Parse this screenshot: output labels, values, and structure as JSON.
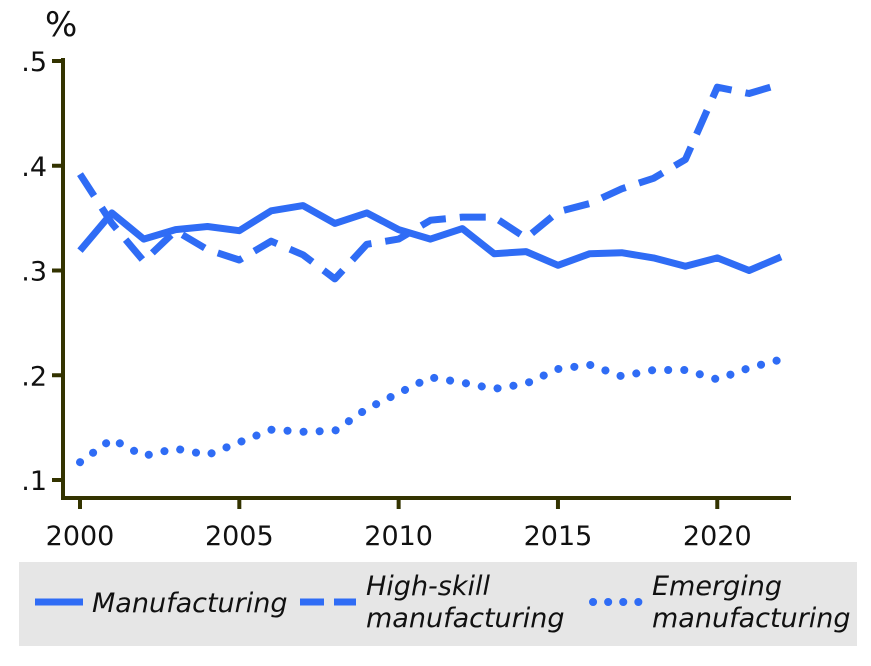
{
  "chart_data": {
    "type": "line",
    "title": "",
    "xlabel": "",
    "ylabel": "%",
    "xlim": [
      2000,
      2022
    ],
    "ylim": [
      0.1,
      0.5
    ],
    "x_ticks": [
      {
        "value": 2000,
        "label": "2000"
      },
      {
        "value": 2005,
        "label": "2005"
      },
      {
        "value": 2010,
        "label": "2010"
      },
      {
        "value": 2015,
        "label": "2015"
      },
      {
        "value": 2020,
        "label": "2020"
      }
    ],
    "y_ticks": [
      {
        "value": 0.1,
        "label": ".1"
      },
      {
        "value": 0.2,
        "label": ".2"
      },
      {
        "value": 0.3,
        "label": ".3"
      },
      {
        "value": 0.4,
        "label": ".4"
      },
      {
        "value": 0.5,
        "label": ".5"
      }
    ],
    "grid": false,
    "legend_position": "bottom",
    "x": [
      2000,
      2001,
      2002,
      2003,
      2004,
      2005,
      2006,
      2007,
      2008,
      2009,
      2010,
      2011,
      2012,
      2013,
      2014,
      2015,
      2016,
      2017,
      2018,
      2019,
      2020,
      2021,
      2022
    ],
    "series": [
      {
        "name": "Manufacturing",
        "legend_lines": [
          "Manufacturing"
        ],
        "style": "solid",
        "color": "#2f6cf5",
        "values": [
          0.319,
          0.355,
          0.33,
          0.339,
          0.342,
          0.338,
          0.357,
          0.362,
          0.345,
          0.355,
          0.339,
          0.33,
          0.34,
          0.316,
          0.318,
          0.305,
          0.316,
          0.317,
          0.312,
          0.304,
          0.312,
          0.3,
          0.313
        ]
      },
      {
        "name": "High-skill manufacturing",
        "legend_lines": [
          "High-skill",
          "manufacturing"
        ],
        "style": "dashed",
        "color": "#2f6cf5",
        "values": [
          0.392,
          0.345,
          0.309,
          0.338,
          0.32,
          0.31,
          0.328,
          0.315,
          0.292,
          0.325,
          0.33,
          0.348,
          0.351,
          0.351,
          0.331,
          0.356,
          0.364,
          0.378,
          0.388,
          0.406,
          0.475,
          0.469,
          0.478
        ]
      },
      {
        "name": "Emerging manufacturing",
        "legend_lines": [
          "Emerging",
          "manufacturing"
        ],
        "style": "dotted",
        "color": "#2f6cf5",
        "values": [
          0.117,
          0.139,
          0.123,
          0.13,
          0.124,
          0.136,
          0.148,
          0.146,
          0.147,
          0.168,
          0.183,
          0.198,
          0.193,
          0.187,
          0.192,
          0.206,
          0.21,
          0.199,
          0.205,
          0.205,
          0.196,
          0.207,
          0.215
        ]
      }
    ]
  }
}
